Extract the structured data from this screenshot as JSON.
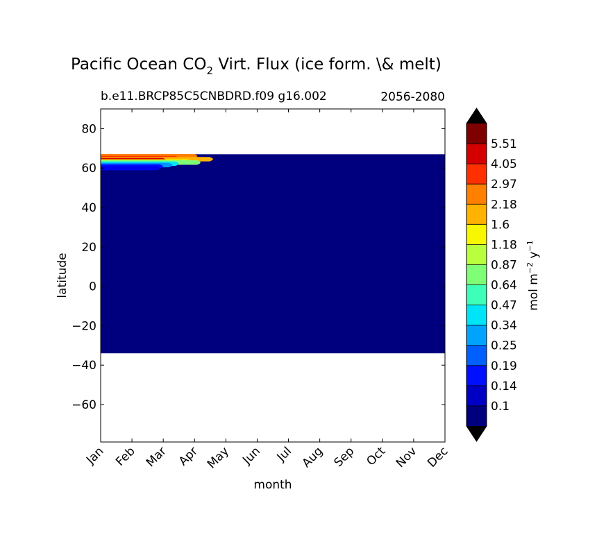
{
  "chart_data": {
    "type": "heatmap",
    "title": "Pacific Ocean CO",
    "title_sub": "2",
    "title_rest": " Virt. Flux (ice form. \\& melt)",
    "subtitle_left": "b.e11.BRCP85C5CNBDRD.f09 g16.002",
    "subtitle_right": "2056-2080",
    "xlabel": "month",
    "ylabel": "latitude",
    "x_ticks": [
      "Jan",
      "Feb",
      "Mar",
      "Apr",
      "May",
      "Jun",
      "Jul",
      "Aug",
      "Sep",
      "Oct",
      "Nov",
      "Dec"
    ],
    "y_ticks": [
      80,
      60,
      40,
      20,
      0,
      -20,
      -40,
      -60
    ],
    "y_tick_labels": [
      "80",
      "60",
      "40",
      "20",
      "0",
      "−20",
      "−40",
      "−60"
    ],
    "ylim": [
      -79,
      90
    ],
    "data_lat_range": [
      -34,
      67
    ],
    "background_level_color": "#00007f",
    "hotspot": {
      "lat_range": [
        59,
        67
      ],
      "month_range": [
        "Jan",
        "May"
      ],
      "bands": [
        {
          "lat": 66,
          "month_end": 3.2,
          "color": "#ff7f00"
        },
        {
          "lat": 65,
          "month_end": 2.6,
          "color": "#ff3000"
        },
        {
          "lat": 64.5,
          "month_end": 3.7,
          "color": "#ffb300"
        },
        {
          "lat": 64,
          "month_end": 2.2,
          "color": "#d40000"
        },
        {
          "lat": 63.3,
          "month_end": 3.0,
          "color": "#e3ff00"
        },
        {
          "lat": 62.8,
          "month_end": 3.3,
          "color": "#7fff76"
        },
        {
          "lat": 62.2,
          "month_end": 2.6,
          "color": "#00e4f7"
        },
        {
          "lat": 61.5,
          "month_end": 2.4,
          "color": "#0094ff"
        },
        {
          "lat": 60.8,
          "month_end": 2.1,
          "color": "#0010ff"
        },
        {
          "lat": 60.0,
          "month_end": 2.0,
          "color": "#0000ed"
        }
      ]
    },
    "colorbar": {
      "label": "mol m",
      "label_sup1": "−2",
      "label_mid": " y",
      "label_sup2": "−1",
      "tick_labels": [
        "0.1",
        "0.14",
        "0.19",
        "0.25",
        "0.34",
        "0.47",
        "0.64",
        "0.87",
        "1.18",
        "1.6",
        "2.18",
        "2.97",
        "4.05",
        "5.51"
      ],
      "colors": [
        "#00007f",
        "#0000c4",
        "#0010ff",
        "#0060ff",
        "#00a4ff",
        "#00e4f7",
        "#3dffba",
        "#7fff76",
        "#baff3d",
        "#f7f700",
        "#ffb300",
        "#ff7f00",
        "#ff3000",
        "#d40000",
        "#7f0000"
      ],
      "extend_min_color": "#000000",
      "extend_max_color": "#000000"
    }
  }
}
